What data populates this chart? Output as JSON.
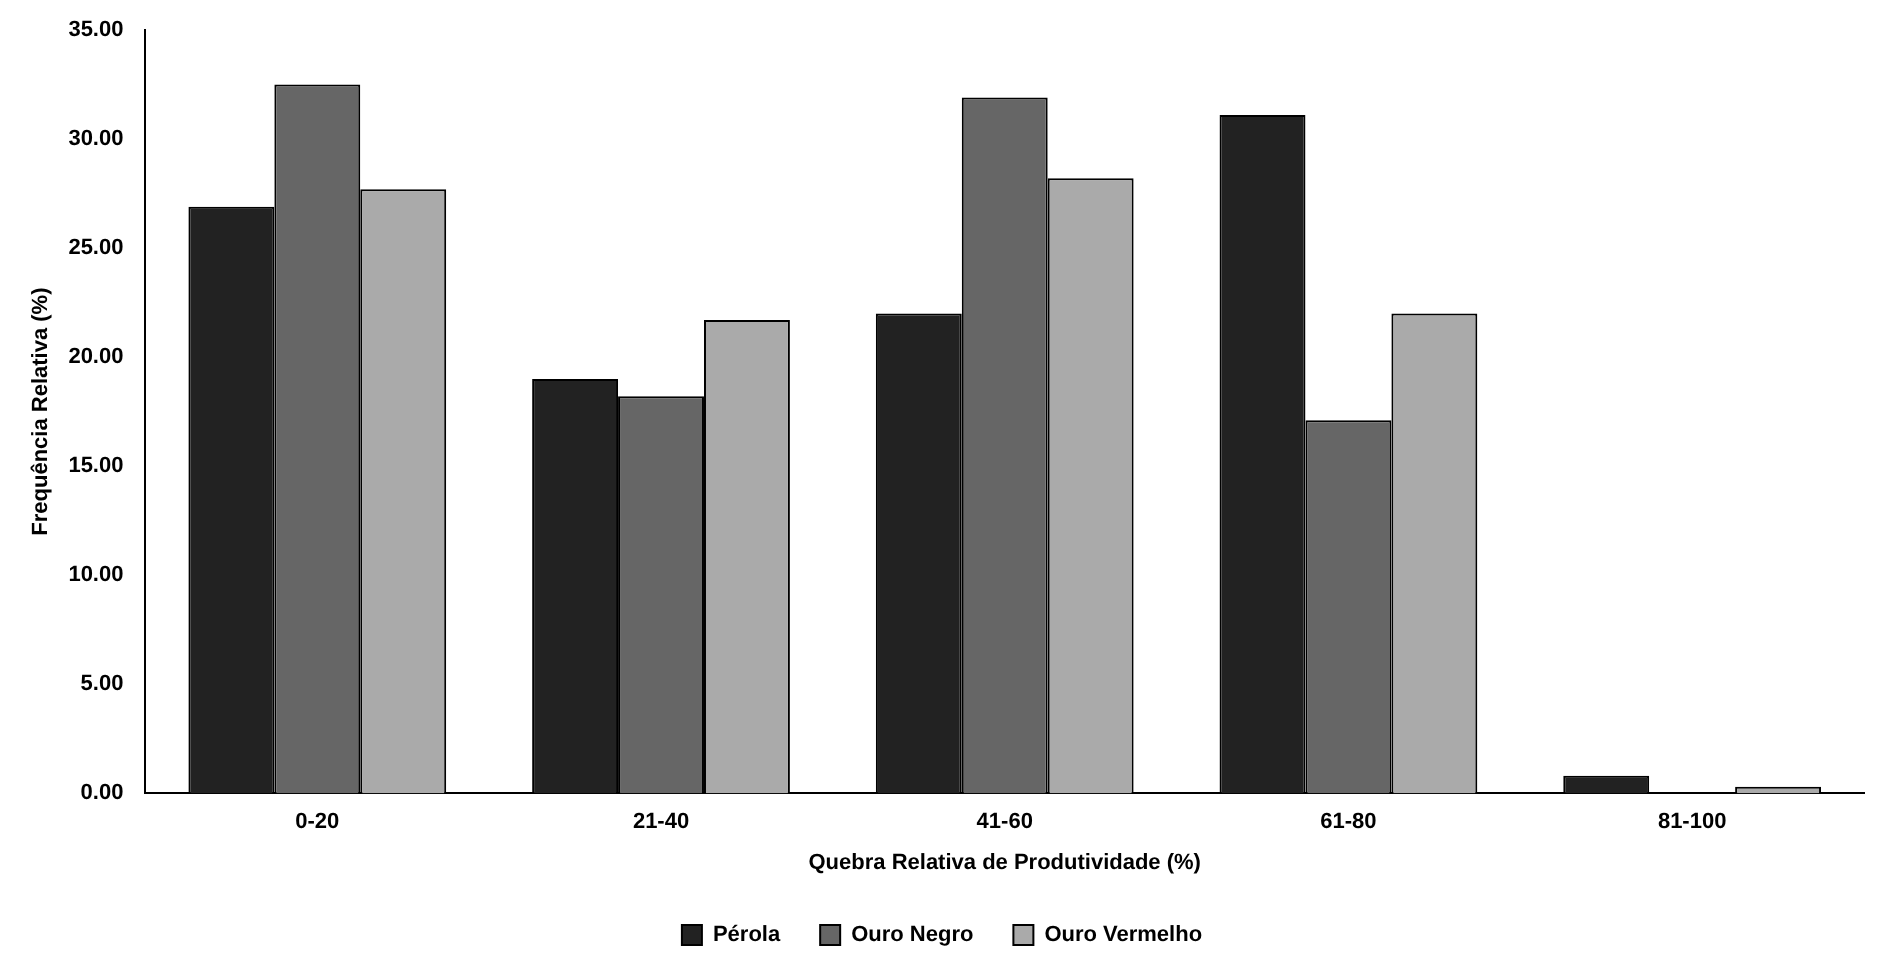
{
  "chart_data": {
    "type": "bar",
    "xlabel": "Quebra Relativa de Produtividade (%)",
    "ylabel": "Frequência Relativa (%)",
    "categories": [
      "0-20",
      "21-40",
      "41-60",
      "61-80",
      "81-100"
    ],
    "series": [
      {
        "name": "Pérola",
        "color": "#222222",
        "values": [
          26.9,
          19.0,
          22.0,
          31.1,
          0.8
        ]
      },
      {
        "name": "Ouro Negro",
        "color": "#666666",
        "values": [
          32.5,
          18.2,
          31.9,
          17.1,
          0
        ]
      },
      {
        "name": "Ouro Vermelho",
        "color": "#aaaaaa",
        "values": [
          27.7,
          21.7,
          28.2,
          22.0,
          0.3
        ]
      }
    ],
    "ylim": [
      0,
      35
    ],
    "yticks": [
      {
        "value": 0,
        "label": "0.00"
      },
      {
        "value": 5,
        "label": "5.00"
      },
      {
        "value": 10,
        "label": "10.00"
      },
      {
        "value": 15,
        "label": "15.00"
      },
      {
        "value": 20,
        "label": "20.00"
      },
      {
        "value": 25,
        "label": "25.00"
      },
      {
        "value": 30,
        "label": "30.00"
      },
      {
        "value": 35,
        "label": "35.00"
      }
    ],
    "grid": false,
    "legend": "bottom"
  }
}
